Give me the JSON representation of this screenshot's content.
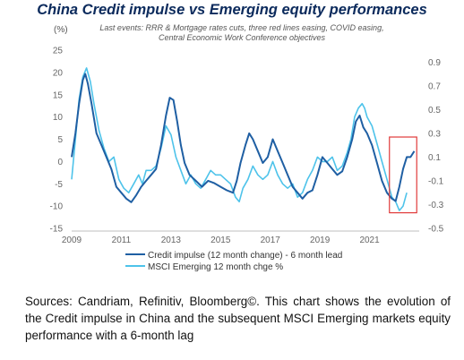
{
  "chart_data": {
    "type": "line",
    "title": "China Credit impulse vs Emerging equity performances",
    "subtitle": "Last events: RRR & Mortgage rates cuts, three red lines easing, COVID easing, Central Economic Work Conference objectives",
    "y_unit_label": "(%)",
    "x_ticks": [
      "2009",
      "2011",
      "2013",
      "2015",
      "2017",
      "2019",
      "2021"
    ],
    "y_left_range": [
      -15,
      25
    ],
    "y_left_ticks": [
      "-15",
      "-10",
      "-5",
      "0",
      "5",
      "10",
      "15",
      "20",
      "25"
    ],
    "y_right_range": [
      -0.5,
      1.0
    ],
    "y_right_ticks": [
      "-0.5",
      "-0.3",
      "-0.1",
      "0.1",
      "0.3",
      "0.5",
      "0.7",
      "0.9"
    ],
    "x_range": [
      2009.0,
      2023.0
    ],
    "grid": false,
    "legend_position": "bottom",
    "colors": {
      "credit": "#1f5fa3",
      "msci": "#4ec3ea",
      "highlight": "#e03a3a"
    },
    "series": [
      {
        "name": "Credit impulse (12 month change) - 6 month lead",
        "axis": "right",
        "x": [
          2009.0,
          2009.15,
          2009.3,
          2009.45,
          2009.55,
          2009.65,
          2009.8,
          2010.0,
          2010.2,
          2010.4,
          2010.6,
          2010.8,
          2011.0,
          2011.2,
          2011.4,
          2011.6,
          2011.8,
          2012.0,
          2012.2,
          2012.4,
          2012.6,
          2012.8,
          2012.95,
          2013.1,
          2013.25,
          2013.4,
          2013.55,
          2013.75,
          2014.0,
          2014.25,
          2014.5,
          2014.75,
          2015.0,
          2015.25,
          2015.5,
          2015.65,
          2015.8,
          2016.0,
          2016.15,
          2016.3,
          2016.5,
          2016.7,
          2016.9,
          2017.1,
          2017.3,
          2017.5,
          2017.7,
          2017.9,
          2018.1,
          2018.3,
          2018.5,
          2018.7,
          2018.9,
          2019.1,
          2019.3,
          2019.5,
          2019.7,
          2019.9,
          2020.1,
          2020.3,
          2020.45,
          2020.6,
          2020.75,
          2020.9,
          2021.1,
          2021.3,
          2021.5,
          2021.7,
          2021.9,
          2022.05,
          2022.2,
          2022.35,
          2022.5,
          2022.65,
          2022.8
        ],
        "values": [
          0.1,
          0.3,
          0.55,
          0.75,
          0.8,
          0.72,
          0.55,
          0.3,
          0.2,
          0.1,
          0.0,
          -0.15,
          -0.2,
          -0.25,
          -0.28,
          -0.22,
          -0.15,
          -0.1,
          -0.05,
          0.0,
          0.2,
          0.45,
          0.6,
          0.58,
          0.4,
          0.2,
          0.05,
          -0.05,
          -0.1,
          -0.15,
          -0.1,
          -0.12,
          -0.15,
          -0.18,
          -0.2,
          -0.1,
          0.05,
          0.2,
          0.3,
          0.25,
          0.15,
          0.05,
          0.1,
          0.25,
          0.15,
          0.05,
          -0.05,
          -0.15,
          -0.2,
          -0.25,
          -0.2,
          -0.18,
          -0.05,
          0.1,
          0.05,
          0.0,
          -0.05,
          -0.02,
          0.1,
          0.25,
          0.4,
          0.45,
          0.35,
          0.3,
          0.2,
          0.05,
          -0.1,
          -0.2,
          -0.25,
          -0.27,
          -0.15,
          0.0,
          0.1,
          0.1,
          0.15
        ]
      },
      {
        "name": "MSCI Emerging 12 month chge %",
        "axis": "left",
        "x": [
          2009.0,
          2009.15,
          2009.3,
          2009.45,
          2009.6,
          2009.75,
          2009.9,
          2010.1,
          2010.3,
          2010.5,
          2010.7,
          2010.9,
          2011.1,
          2011.3,
          2011.5,
          2011.7,
          2011.85,
          2012.0,
          2012.2,
          2012.4,
          2012.6,
          2012.8,
          2013.0,
          2013.2,
          2013.4,
          2013.6,
          2013.8,
          2014.0,
          2014.2,
          2014.4,
          2014.6,
          2014.8,
          2015.0,
          2015.2,
          2015.4,
          2015.6,
          2015.75,
          2015.9,
          2016.1,
          2016.3,
          2016.5,
          2016.7,
          2016.9,
          2017.1,
          2017.3,
          2017.5,
          2017.7,
          2017.9,
          2018.1,
          2018.3,
          2018.5,
          2018.7,
          2018.9,
          2019.1,
          2019.3,
          2019.5,
          2019.7,
          2019.9,
          2020.1,
          2020.25,
          2020.4,
          2020.55,
          2020.7,
          2020.8,
          2020.9,
          2021.1,
          2021.3,
          2021.5,
          2021.7,
          2021.9,
          2022.05,
          2022.2,
          2022.35,
          2022.5
        ],
        "values": [
          -4.0,
          5.0,
          14.0,
          19.0,
          21.0,
          18.0,
          13.0,
          7.0,
          3.0,
          0.0,
          1.0,
          -4.0,
          -6.0,
          -7.0,
          -5.0,
          -3.0,
          -5.0,
          -2.0,
          -2.0,
          -1.0,
          3.0,
          8.0,
          6.0,
          1.0,
          -2.0,
          -5.0,
          -3.0,
          -5.0,
          -6.0,
          -4.0,
          -2.0,
          -3.0,
          -3.0,
          -4.0,
          -5.0,
          -8.0,
          -9.0,
          -6.0,
          -4.0,
          -1.0,
          -3.0,
          -4.0,
          -3.0,
          0.0,
          -3.0,
          -5.0,
          -6.0,
          -5.0,
          -8.0,
          -7.0,
          -4.0,
          -2.0,
          1.0,
          0.0,
          0.0,
          1.0,
          -2.0,
          -1.0,
          2.0,
          5.0,
          10.0,
          12.0,
          13.0,
          12.0,
          10.0,
          8.0,
          4.0,
          0.0,
          -4.0,
          -8.0,
          -9.0,
          -11.0,
          -10.0,
          -7.0
        ]
      }
    ],
    "highlight_box": {
      "x_from": 2021.8,
      "x_to": 2022.9,
      "y_left_from": -11.5,
      "y_left_to": 5.5
    }
  },
  "source_note": "Sources: Candriam, Refinitiv, Bloomberg©. This chart shows the evolution of the Credit impulse in China and the subsequent MSCI Emerging markets equity performance with a 6-month lag"
}
